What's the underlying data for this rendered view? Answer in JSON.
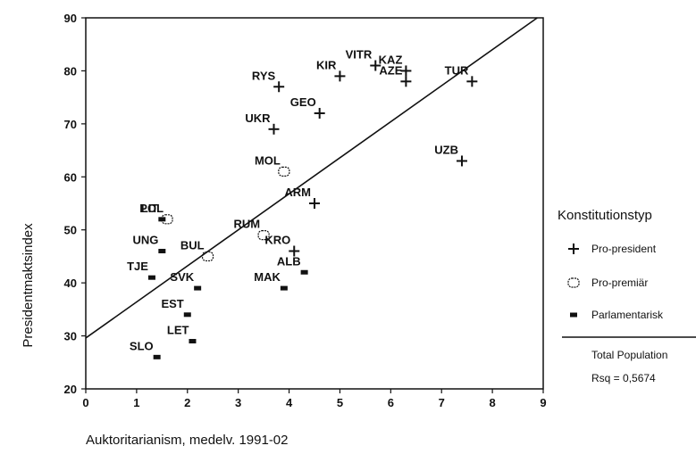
{
  "chart_data": {
    "type": "scatter",
    "xlabel": "Auktoritarianism, medelv. 1991-02",
    "ylabel": "Presidentmaktsindex",
    "xlim": [
      0,
      9
    ],
    "ylim": [
      20,
      90
    ],
    "x_ticks": [
      0,
      1,
      2,
      3,
      4,
      5,
      6,
      7,
      8,
      9
    ],
    "y_ticks": [
      20,
      30,
      40,
      50,
      60,
      70,
      80,
      90
    ],
    "grid": false,
    "legend_position": "right",
    "legend": {
      "title": "Konstitutionstyp",
      "entries": [
        "Pro-president",
        "Pro-premiär",
        "Parlamentarisk"
      ],
      "fit_label": "Total Population",
      "fit_stat": "Rsq = 0,5674"
    },
    "series": [
      {
        "name": "Pro-president",
        "marker": "plus",
        "points": [
          {
            "label": "RYS",
            "x": 3.8,
            "y": 77
          },
          {
            "label": "KIR",
            "x": 5.0,
            "y": 79
          },
          {
            "label": "VITR",
            "x": 5.7,
            "y": 81
          },
          {
            "label": "KAZ",
            "x": 6.3,
            "y": 80
          },
          {
            "label": "AZE",
            "x": 6.3,
            "y": 78
          },
          {
            "label": "TUR",
            "x": 7.6,
            "y": 78
          },
          {
            "label": "GEO",
            "x": 4.6,
            "y": 72
          },
          {
            "label": "UKR",
            "x": 3.7,
            "y": 69
          },
          {
            "label": "UZB",
            "x": 7.4,
            "y": 63
          },
          {
            "label": "ARM",
            "x": 4.5,
            "y": 55
          },
          {
            "label": "KRO",
            "x": 4.1,
            "y": 46
          }
        ]
      },
      {
        "name": "Pro-premiär",
        "marker": "open-oval",
        "points": [
          {
            "label": "MOL",
            "x": 3.9,
            "y": 61
          },
          {
            "label": "POL",
            "x": 1.6,
            "y": 52
          },
          {
            "label": "RUM",
            "x": 3.5,
            "y": 49
          },
          {
            "label": "BUL",
            "x": 2.4,
            "y": 45
          }
        ]
      },
      {
        "name": "Parlamentarisk",
        "marker": "filled-rect",
        "points": [
          {
            "label": "LIT",
            "x": 1.5,
            "y": 52
          },
          {
            "label": "UNG",
            "x": 1.5,
            "y": 46
          },
          {
            "label": "TJE",
            "x": 1.3,
            "y": 41
          },
          {
            "label": "SVK",
            "x": 2.2,
            "y": 39
          },
          {
            "label": "ALB",
            "x": 4.3,
            "y": 42
          },
          {
            "label": "MAK",
            "x": 3.9,
            "y": 39
          },
          {
            "label": "EST",
            "x": 2.0,
            "y": 34
          },
          {
            "label": "LET",
            "x": 2.1,
            "y": 29
          },
          {
            "label": "SLO",
            "x": 1.4,
            "y": 26
          }
        ]
      }
    ],
    "fit_line": {
      "intercept": 29.6,
      "slope": 6.8
    }
  },
  "colors": {
    "ink": "#111111",
    "background": "#ffffff"
  }
}
